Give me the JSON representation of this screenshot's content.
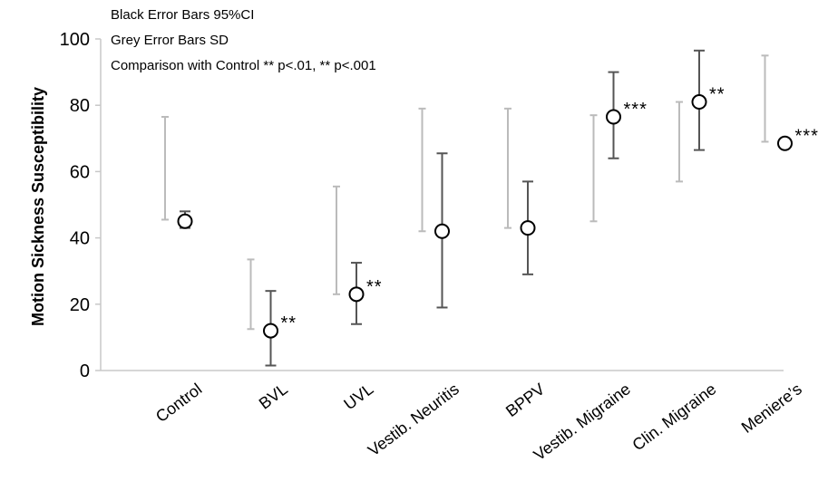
{
  "chart_data": {
    "type": "scatter",
    "title": "",
    "xlabel": "",
    "ylabel": "Motion Sickness Susceptibility",
    "ylim": [
      0,
      100
    ],
    "yticks": [
      0,
      20,
      40,
      60,
      80,
      100
    ],
    "grid": false,
    "notes": [
      "Black Error Bars 95%CI",
      "Grey Error Bars SD",
      "Comparison with Control ** p<.01, ** p<.001"
    ],
    "categories": [
      "Control",
      "BVL",
      "UVL",
      "Vestib. Neuritis",
      "BPPV",
      "Vestib. Migraine",
      "Clin. Migraine",
      "Meniere’s"
    ],
    "points": [
      {
        "category": "Control",
        "mean": 45,
        "ci": [
          43,
          48
        ],
        "sd": [
          45.5,
          76.5
        ],
        "sig": ""
      },
      {
        "category": "BVL",
        "mean": 12,
        "ci": [
          1.5,
          24
        ],
        "sd": [
          12.5,
          33.5
        ],
        "sig": "**"
      },
      {
        "category": "UVL",
        "mean": 23,
        "ci": [
          14,
          32.5
        ],
        "sd": [
          23,
          55.5
        ],
        "sig": "**"
      },
      {
        "category": "Vestib. Neuritis",
        "mean": 42,
        "ci": [
          19,
          65.5
        ],
        "sd": [
          42,
          79
        ],
        "sig": ""
      },
      {
        "category": "BPPV",
        "mean": 43,
        "ci": [
          29,
          57
        ],
        "sd": [
          43,
          79
        ],
        "sig": ""
      },
      {
        "category": "Vestib. Migraine",
        "mean": 76.5,
        "ci": [
          64,
          90
        ],
        "sd": [
          45,
          77
        ],
        "sig": "***"
      },
      {
        "category": "Clin. Migraine",
        "mean": 81,
        "ci": [
          66.5,
          96.5
        ],
        "sd": [
          57,
          81
        ],
        "sig": "**"
      },
      {
        "category": "Meniere’s",
        "mean": 68.5,
        "ci": [
          68.5,
          69
        ],
        "sd": [
          69,
          95
        ],
        "sig": "***"
      }
    ],
    "colors": {
      "ci": "#555555",
      "sd": "#bbbbbb",
      "axis": "#c8c8c8",
      "marker": "#000000"
    }
  }
}
